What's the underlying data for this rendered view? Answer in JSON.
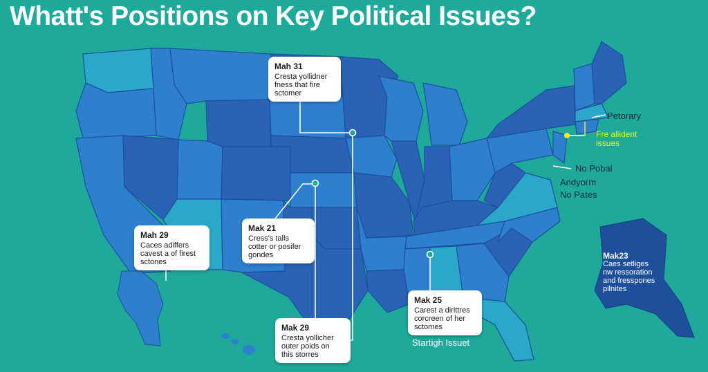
{
  "title": "Whatt's Positions on Key Political Issues?",
  "colors": {
    "background": "#1fa99a",
    "state_dark": "#2a63b6",
    "state_mid": "#2f7fcf",
    "state_light": "#2aa7c9",
    "alaska": "#1d4f9a",
    "callout_bg": "#ffffff",
    "highlight": "#f2ef1a"
  },
  "callouts": [
    {
      "id": "north",
      "head": "Mah 31",
      "body": "Cresta yollidner\nfness that fire\nsctomer"
    },
    {
      "id": "west",
      "head": "Mah 29",
      "body": "Caces adiffers\ncavest a of firest\nsctones"
    },
    {
      "id": "central",
      "head": "Mak 21",
      "body": "Cress's talls\ncotter or posifer\ngondes"
    },
    {
      "id": "south",
      "head": "Mak 29",
      "body": "Cresta yollicher\nouter poids on\nthis storres"
    },
    {
      "id": "southeast",
      "head": "Mak 25",
      "body": "Carest a dirittres\ncorcreen of her\nsctomes"
    }
  ],
  "alaska_callout": {
    "head": "Mak23",
    "body": "Caes setliges\nnw ressoration\nand fresspones\npilnites"
  },
  "side_labels": {
    "petorary": "Petorary",
    "fre_allident": "Fre allident\nissues",
    "no_pobal": "No Pobal",
    "andyorm": "Andyorm",
    "no_pates": "No Pates",
    "startigh": "Startigh Issuet"
  }
}
